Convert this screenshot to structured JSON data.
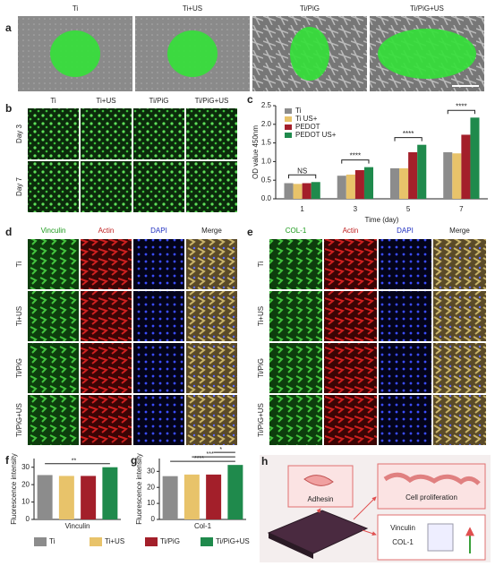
{
  "panel_labels": [
    "a",
    "b",
    "c",
    "d",
    "e",
    "f",
    "g",
    "h"
  ],
  "panel_a": {
    "columns": [
      "Ti",
      "Ti+US",
      "Ti/PiG",
      "Ti/PiG+US"
    ]
  },
  "panel_b": {
    "columns": [
      "Ti",
      "Ti+US",
      "Ti/PiG",
      "Ti/PiG+US"
    ],
    "rows": [
      "Day 3",
      "Day 7"
    ]
  },
  "panel_d": {
    "columns": [
      "Vinculin",
      "Actin",
      "DAPI",
      "Merge"
    ],
    "rows": [
      "Ti",
      "Ti+US",
      "Ti/PiG",
      "Ti/PiG+US"
    ]
  },
  "panel_e": {
    "columns": [
      "COL-1",
      "Actin",
      "DAPI",
      "Merge"
    ],
    "rows": [
      "Ti",
      "Ti+US",
      "Ti/PiG",
      "Ti/PiG+US"
    ]
  },
  "shared_legend": {
    "names": [
      "Ti",
      "Ti+US",
      "Ti/PiG",
      "Ti/PiG+US"
    ],
    "colors": [
      "#8c8c8c",
      "#e8c36a",
      "#a31f2a",
      "#1f8a4c"
    ]
  },
  "chart_data": [
    {
      "type": "bar",
      "y_label": "OD value  450nm",
      "x_label": "Time (day)",
      "categories": [
        "1",
        "3",
        "5",
        "7"
      ],
      "series": [
        {
          "name": "Ti",
          "color": "#8c8c8c",
          "values": [
            0.42,
            0.62,
            0.82,
            1.25
          ]
        },
        {
          "name": "Ti US+",
          "color": "#e8c36a",
          "values": [
            0.4,
            0.65,
            0.82,
            1.22
          ]
        },
        {
          "name": "PEDOT",
          "color": "#a31f2a",
          "values": [
            0.42,
            0.77,
            1.25,
            1.72
          ]
        },
        {
          "name": "PEDOT US+",
          "color": "#1f8a4c",
          "values": [
            0.45,
            0.85,
            1.45,
            2.18
          ]
        }
      ],
      "ylim": [
        0,
        2.5
      ],
      "yticks": [
        {
          "value": 0,
          "label": "0.0"
        },
        0.5,
        {
          "value": 1,
          "label": "1.0"
        },
        1.5,
        {
          "value": 2,
          "label": "2.0"
        },
        2.5
      ],
      "annotations": [
        "NS",
        "****",
        "****",
        "****"
      ]
    },
    {
      "type": "bar",
      "y_label": "Fluorescence intensity",
      "x_label": "Vinculin",
      "values": [
        25.5,
        25,
        25,
        30
      ],
      "ylim": [
        0,
        35
      ],
      "yticks": [
        0,
        10,
        20,
        30
      ],
      "annotations": [
        "**"
      ]
    },
    {
      "type": "bar",
      "y_label": "Fluorescence intensity",
      "x_label": "Col-1",
      "values": [
        27,
        28,
        28,
        34
      ],
      "ylim": [
        0,
        38
      ],
      "yticks": [
        0,
        10,
        20,
        30
      ],
      "annotations": [
        "****",
        "***",
        "*"
      ]
    }
  ],
  "panel_h": {
    "adhesion": "Adhesin",
    "proliferation": "Cell proliferation",
    "markers": [
      "Vinculin",
      "COL-1"
    ]
  }
}
